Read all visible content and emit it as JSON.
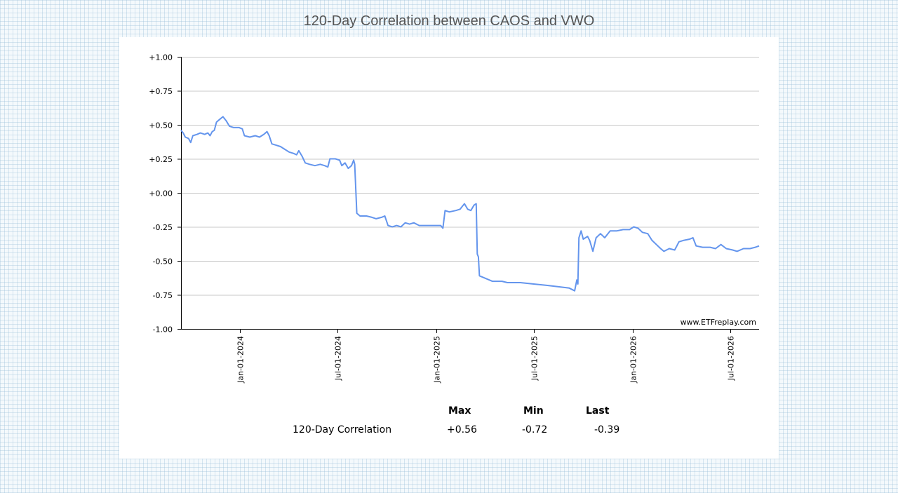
{
  "title": "120-Day Correlation between CAOS and VWO",
  "watermark": "www.ETFreplay.com",
  "stats": {
    "headers": [
      "Max",
      "Min",
      "Last"
    ],
    "row_label": "120-Day Correlation",
    "values": [
      "+0.56",
      "-0.72",
      "-0.39"
    ]
  },
  "chart_data": {
    "type": "line",
    "title": "120-Day Correlation between CAOS and VWO",
    "xlabel": "",
    "ylabel": "",
    "ylim": [
      -1.0,
      1.0
    ],
    "yticks": [
      1.0,
      0.75,
      0.5,
      0.25,
      0.0,
      -0.25,
      -0.5,
      -0.75,
      -1.0
    ],
    "ytick_labels": [
      "+1.00",
      "+0.75",
      "+0.50",
      "+0.25",
      "+0.00",
      "-0.25",
      "-0.50",
      "-0.75",
      "-1.00"
    ],
    "xlim": [
      "2023-09-14",
      "2026-08-24"
    ],
    "xticks": [
      "2024-01-01",
      "2024-07-01",
      "2025-01-01",
      "2025-07-01",
      "2026-01-01",
      "2026-07-01"
    ],
    "xtick_labels": [
      "Jan-01-2024",
      "Jul-01-2024",
      "Jan-01-2025",
      "Jul-01-2025",
      "Jan-01-2026",
      "Jul-01-2026"
    ],
    "grid": true,
    "line_color": "#6495ED",
    "series": [
      {
        "name": "",
        "points": [
          [
            "2023-09-14",
            0.46
          ],
          [
            "2023-09-18",
            0.44
          ],
          [
            "2023-09-22",
            0.41
          ],
          [
            "2023-09-28",
            0.4
          ],
          [
            "2023-10-02",
            0.37
          ],
          [
            "2023-10-06",
            0.42
          ],
          [
            "2023-10-14",
            0.43
          ],
          [
            "2023-10-20",
            0.44
          ],
          [
            "2023-10-28",
            0.43
          ],
          [
            "2023-11-03",
            0.44
          ],
          [
            "2023-11-07",
            0.42
          ],
          [
            "2023-11-11",
            0.45
          ],
          [
            "2023-11-15",
            0.46
          ],
          [
            "2023-11-19",
            0.52
          ],
          [
            "2023-11-25",
            0.54
          ],
          [
            "2023-12-01",
            0.56
          ],
          [
            "2023-12-07",
            0.53
          ],
          [
            "2023-12-13",
            0.49
          ],
          [
            "2023-12-21",
            0.48
          ],
          [
            "2023-12-31",
            0.48
          ],
          [
            "2024-01-06",
            0.47
          ],
          [
            "2024-01-10",
            0.42
          ],
          [
            "2024-01-20",
            0.41
          ],
          [
            "2024-01-30",
            0.42
          ],
          [
            "2024-02-07",
            0.41
          ],
          [
            "2024-02-15",
            0.43
          ],
          [
            "2024-02-21",
            0.45
          ],
          [
            "2024-02-25",
            0.42
          ],
          [
            "2024-03-01",
            0.36
          ],
          [
            "2024-03-09",
            0.35
          ],
          [
            "2024-03-17",
            0.34
          ],
          [
            "2024-03-25",
            0.32
          ],
          [
            "2024-04-02",
            0.3
          ],
          [
            "2024-04-10",
            0.29
          ],
          [
            "2024-04-16",
            0.28
          ],
          [
            "2024-04-20",
            0.31
          ],
          [
            "2024-04-26",
            0.27
          ],
          [
            "2024-05-02",
            0.22
          ],
          [
            "2024-05-10",
            0.21
          ],
          [
            "2024-05-20",
            0.2
          ],
          [
            "2024-05-30",
            0.21
          ],
          [
            "2024-06-07",
            0.2
          ],
          [
            "2024-06-13",
            0.19
          ],
          [
            "2024-06-17",
            0.25
          ],
          [
            "2024-06-27",
            0.25
          ],
          [
            "2024-07-05",
            0.24
          ],
          [
            "2024-07-09",
            0.2
          ],
          [
            "2024-07-15",
            0.22
          ],
          [
            "2024-07-21",
            0.18
          ],
          [
            "2024-07-27",
            0.2
          ],
          [
            "2024-07-31",
            0.24
          ],
          [
            "2024-08-02",
            0.21
          ],
          [
            "2024-08-06",
            -0.15
          ],
          [
            "2024-08-12",
            -0.17
          ],
          [
            "2024-08-24",
            -0.17
          ],
          [
            "2024-09-03",
            -0.18
          ],
          [
            "2024-09-11",
            -0.19
          ],
          [
            "2024-09-21",
            -0.18
          ],
          [
            "2024-09-27",
            -0.17
          ],
          [
            "2024-10-03",
            -0.24
          ],
          [
            "2024-10-11",
            -0.25
          ],
          [
            "2024-10-19",
            -0.24
          ],
          [
            "2024-10-27",
            -0.25
          ],
          [
            "2024-11-04",
            -0.22
          ],
          [
            "2024-11-12",
            -0.23
          ],
          [
            "2024-11-20",
            -0.22
          ],
          [
            "2024-11-30",
            -0.24
          ],
          [
            "2024-12-12",
            -0.24
          ],
          [
            "2024-12-24",
            -0.24
          ],
          [
            "2025-01-01",
            -0.24
          ],
          [
            "2025-01-09",
            -0.24
          ],
          [
            "2025-01-13",
            -0.26
          ],
          [
            "2025-01-17",
            -0.13
          ],
          [
            "2025-01-25",
            -0.14
          ],
          [
            "2025-02-06",
            -0.13
          ],
          [
            "2025-02-14",
            -0.12
          ],
          [
            "2025-02-22",
            -0.08
          ],
          [
            "2025-02-28",
            -0.12
          ],
          [
            "2025-03-06",
            -0.13
          ],
          [
            "2025-03-12",
            -0.09
          ],
          [
            "2025-03-16",
            -0.08
          ],
          [
            "2025-03-18",
            -0.45
          ],
          [
            "2025-03-20",
            -0.47
          ],
          [
            "2025-03-22",
            -0.61
          ],
          [
            "2025-04-03",
            -0.63
          ],
          [
            "2025-04-15",
            -0.65
          ],
          [
            "2025-05-03",
            -0.65
          ],
          [
            "2025-05-13",
            -0.66
          ],
          [
            "2025-06-06",
            -0.66
          ],
          [
            "2025-07-01",
            -0.67
          ],
          [
            "2025-07-25",
            -0.68
          ],
          [
            "2025-08-16",
            -0.69
          ],
          [
            "2025-09-05",
            -0.7
          ],
          [
            "2025-09-15",
            -0.72
          ],
          [
            "2025-09-19",
            -0.64
          ],
          [
            "2025-09-21",
            -0.67
          ],
          [
            "2025-09-23",
            -0.33
          ],
          [
            "2025-09-27",
            -0.28
          ],
          [
            "2025-10-01",
            -0.34
          ],
          [
            "2025-10-09",
            -0.32
          ],
          [
            "2025-10-13",
            -0.35
          ],
          [
            "2025-10-19",
            -0.43
          ],
          [
            "2025-10-25",
            -0.33
          ],
          [
            "2025-11-02",
            -0.3
          ],
          [
            "2025-11-10",
            -0.33
          ],
          [
            "2025-11-20",
            -0.28
          ],
          [
            "2025-12-02",
            -0.28
          ],
          [
            "2025-12-14",
            -0.27
          ],
          [
            "2025-12-26",
            -0.27
          ],
          [
            "2026-01-03",
            -0.25
          ],
          [
            "2026-01-11",
            -0.26
          ],
          [
            "2026-01-19",
            -0.29
          ],
          [
            "2026-01-29",
            -0.3
          ],
          [
            "2026-02-06",
            -0.35
          ],
          [
            "2026-02-14",
            -0.38
          ],
          [
            "2026-02-22",
            -0.41
          ],
          [
            "2026-02-28",
            -0.43
          ],
          [
            "2026-03-10",
            -0.41
          ],
          [
            "2026-03-20",
            -0.42
          ],
          [
            "2026-03-28",
            -0.36
          ],
          [
            "2026-04-05",
            -0.35
          ],
          [
            "2026-04-17",
            -0.34
          ],
          [
            "2026-04-23",
            -0.33
          ],
          [
            "2026-04-29",
            -0.39
          ],
          [
            "2026-05-11",
            -0.4
          ],
          [
            "2026-05-25",
            -0.4
          ],
          [
            "2026-06-04",
            -0.41
          ],
          [
            "2026-06-14",
            -0.38
          ],
          [
            "2026-06-24",
            -0.41
          ],
          [
            "2026-07-06",
            -0.42
          ],
          [
            "2026-07-14",
            -0.43
          ],
          [
            "2026-07-26",
            -0.41
          ],
          [
            "2026-08-07",
            -0.41
          ],
          [
            "2026-08-17",
            -0.4
          ],
          [
            "2026-08-24",
            -0.39
          ]
        ]
      }
    ]
  }
}
